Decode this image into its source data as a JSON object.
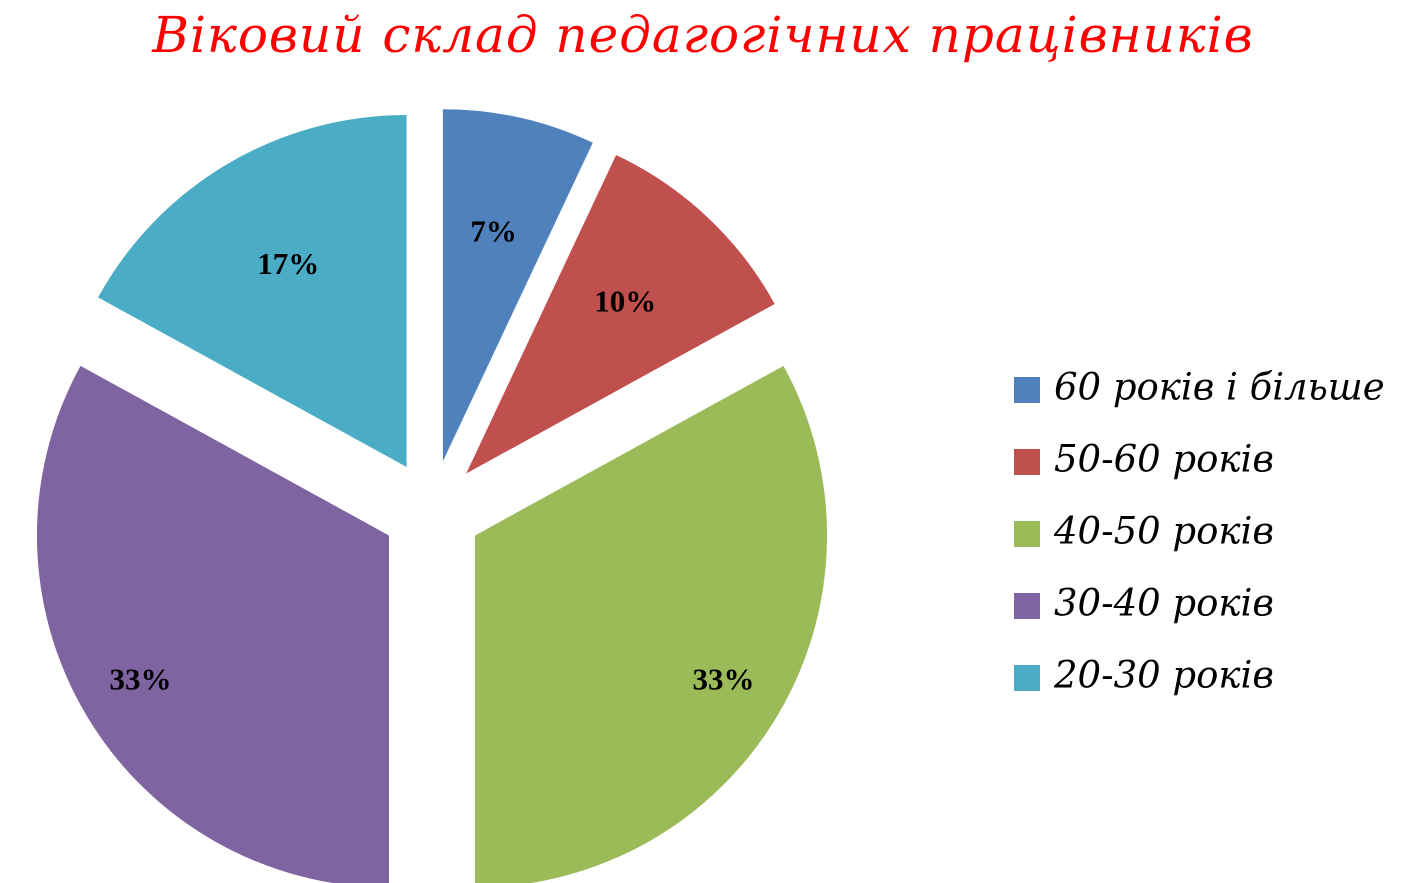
{
  "chart_data": {
    "type": "pie",
    "title": "Віковий склад педагогічних працівників",
    "slices": [
      {
        "name": "60 років і більше",
        "value": 7,
        "label": "7%",
        "color": "#4f81bd"
      },
      {
        "name": "50-60 років",
        "value": 10,
        "label": "10%",
        "color": "#c0504d"
      },
      {
        "name": "40-50 років",
        "value": 33,
        "label": "33%",
        "color": "#9bbb59"
      },
      {
        "name": "30-40 років",
        "value": 33,
        "label": "33%",
        "color": "#8064a2"
      },
      {
        "name": "20-30 років",
        "value": 17,
        "label": "17%",
        "color": "#4bacc6"
      }
    ],
    "exploded": true,
    "legend_position": "right"
  }
}
